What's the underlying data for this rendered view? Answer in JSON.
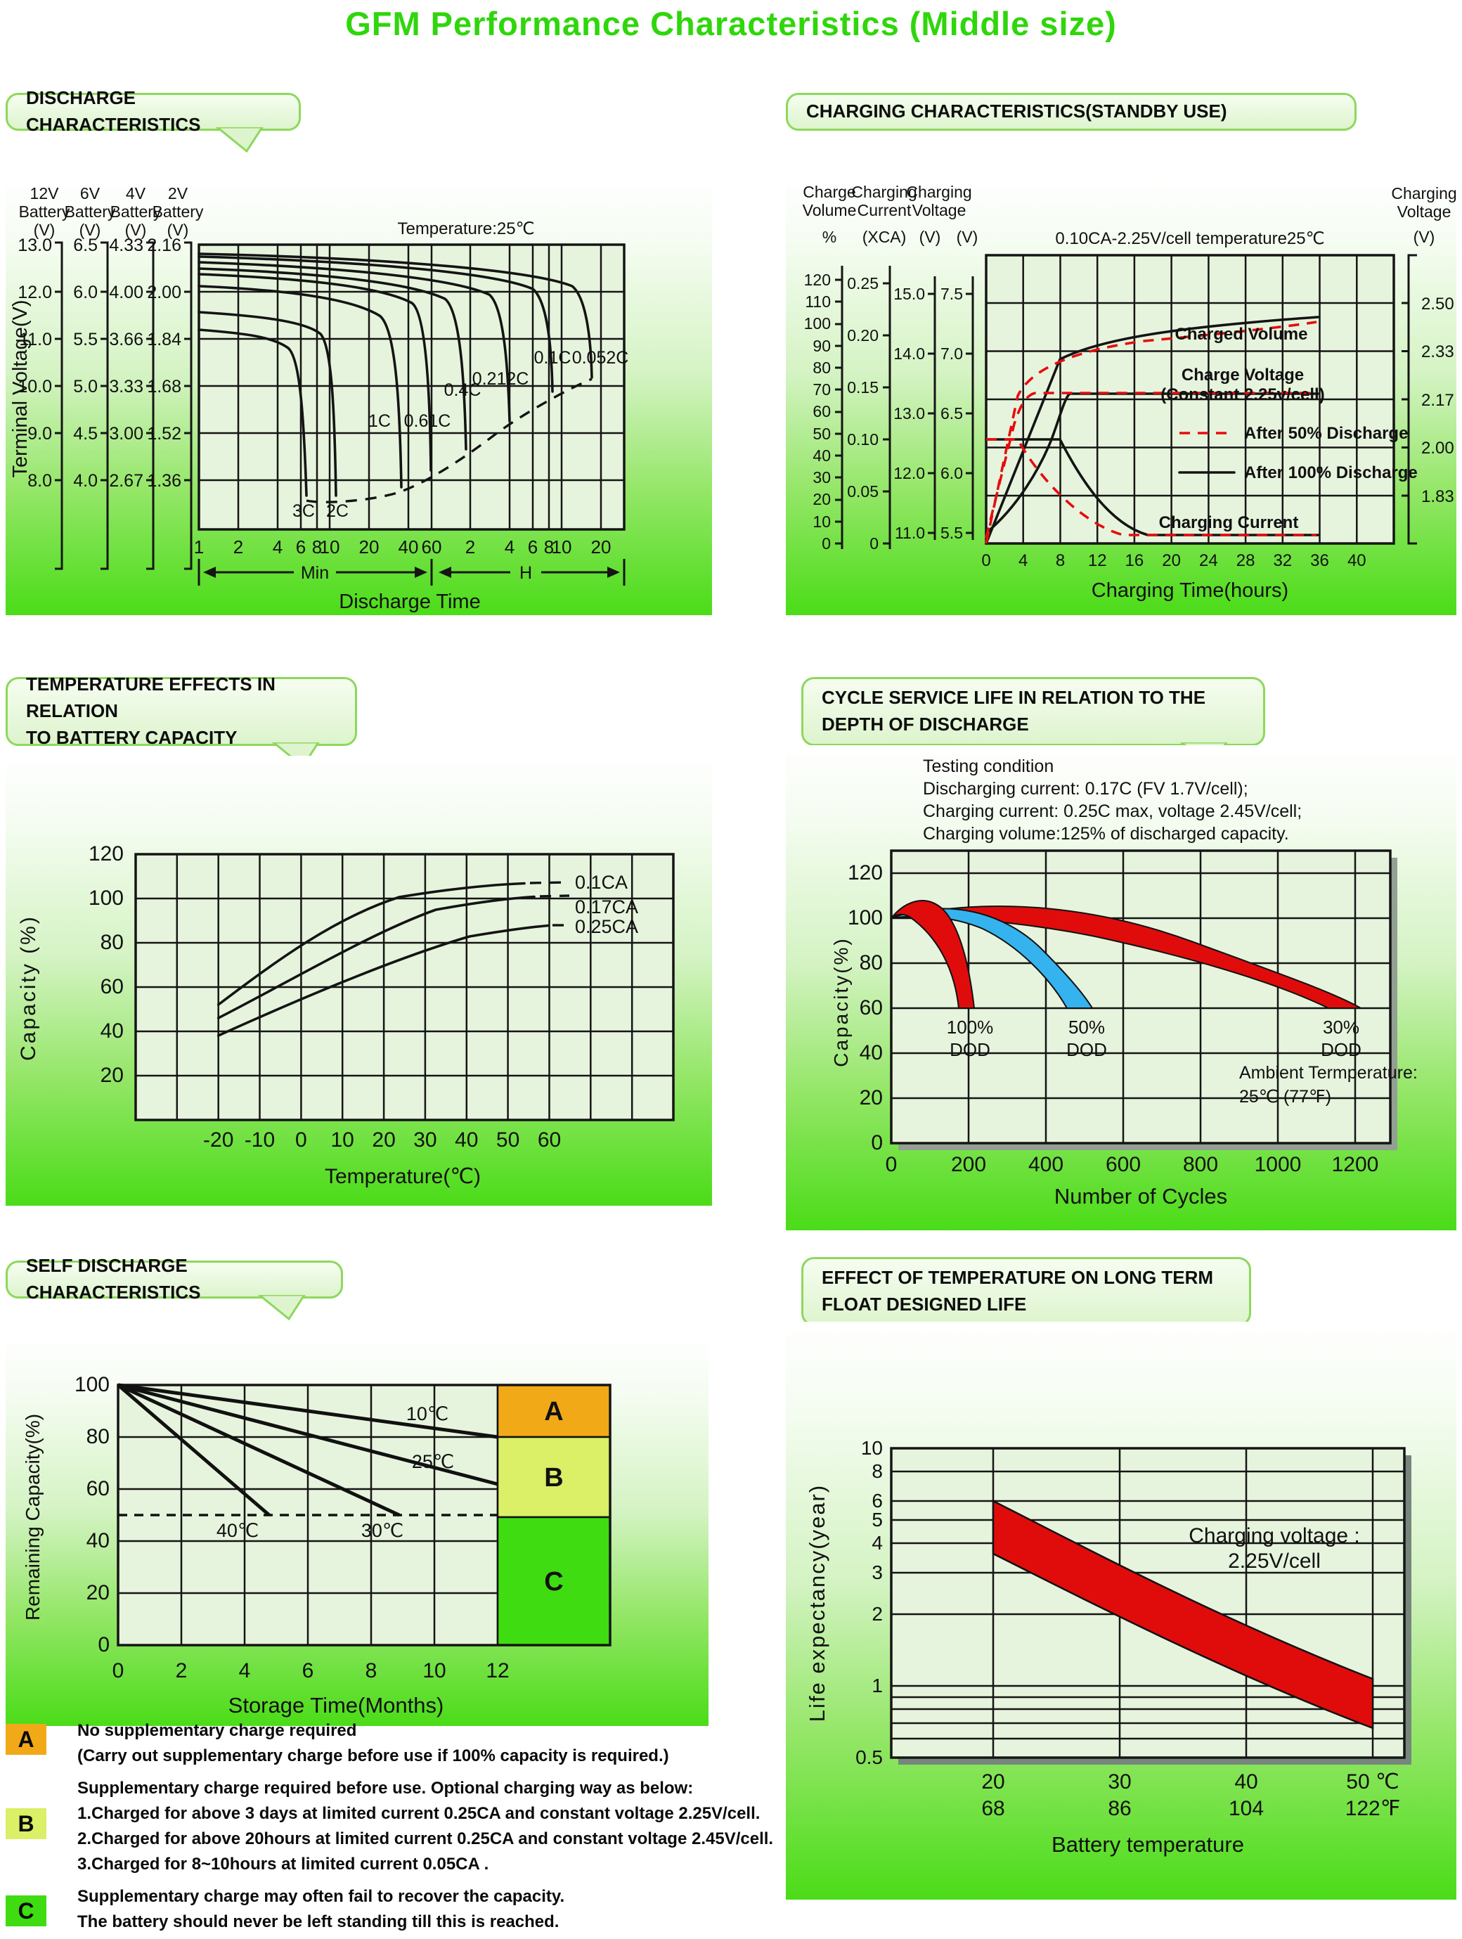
{
  "page_title": "GFM Performance Characteristics (Middle size)",
  "colors": {
    "title_green": "#2fd60b",
    "panel_green": "#4bdc18",
    "plot_bg": "#e7f4dd",
    "red_curve": "#e60d0d",
    "blue_band": "#35b3ef",
    "red_band": "#e00c0c",
    "zone_a_orange": "#f2a918",
    "zone_b_yellowgreen": "#dbef67",
    "zone_c_green": "#3fdc12"
  },
  "headers": {
    "discharge": {
      "lines": [
        "DISCHARGE CHARACTERISTICS"
      ]
    },
    "charging": {
      "lines": [
        "CHARGING CHARACTERISTICS(STANDBY USE)"
      ]
    },
    "temperature": {
      "lines": [
        "TEMPERATURE EFFECTS IN RELATION",
        "TO BATTERY CAPACITY"
      ]
    },
    "cycle": {
      "lines": [
        "CYCLE SERVICE LIFE IN RELATION TO THE",
        "DEPTH OF DISCHARGE"
      ]
    },
    "self_discharge": {
      "lines": [
        "SELF DISCHARGE CHARACTERISTICS"
      ]
    },
    "float_life": {
      "lines": [
        "EFFECT OF TEMPERATURE ON LONG TERM",
        "FLOAT DESIGNED LIFE"
      ]
    }
  },
  "chart_data": [
    {
      "type": "line",
      "title": "DISCHARGE CHARACTERISTICS",
      "annotation": "Temperature:25℃",
      "xlabel": "Discharge Time",
      "x_unit_min": "Min",
      "x_unit_h": "H",
      "ylabel": "Terminal Voltage(V)",
      "scale_headers_row1": [
        "12V",
        "6V",
        "4V",
        "2V"
      ],
      "scale_headers_row2": [
        "Battery",
        "Battery",
        "Battery",
        "Battery"
      ],
      "scale_headers_row3": [
        "(V)",
        "(V)",
        "(V)",
        "(V)"
      ],
      "scale_12v": [
        "13.0",
        "12.0",
        "11.0",
        "10.0",
        "9.0",
        "8.0"
      ],
      "scale_6v": [
        "6.5",
        "6.0",
        "5.5",
        "5.0",
        "4.5",
        "4.0"
      ],
      "scale_4v": [
        "4.33",
        "4.00",
        "3.66",
        "3.33",
        "3.00",
        "2.67"
      ],
      "scale_2v": [
        "2.16",
        "2.00",
        "1.84",
        "1.68",
        "1.52",
        "1.36"
      ],
      "xticks_min": [
        "1",
        "2",
        "4",
        "6",
        "8",
        "10",
        "20",
        "40",
        "60"
      ],
      "xticks_h": [
        "2",
        "4",
        "6",
        "8",
        "10",
        "20"
      ],
      "series": [
        {
          "name": "3C",
          "points_min_vs_v2cell": [
            [
              1,
              1.87
            ],
            [
              4,
              1.83
            ],
            [
              6,
              1.7
            ],
            [
              7,
              1.3
            ]
          ]
        },
        {
          "name": "2C",
          "points_min_vs_v2cell": [
            [
              1,
              1.93
            ],
            [
              6,
              1.88
            ],
            [
              9,
              1.74
            ],
            [
              11,
              1.3
            ]
          ]
        },
        {
          "name": "1C",
          "points_min_vs_v2cell": [
            [
              1,
              2.02
            ],
            [
              15,
              1.95
            ],
            [
              28,
              1.78
            ],
            [
              35,
              1.33
            ]
          ]
        },
        {
          "name": "0.61C",
          "points_min_vs_v2cell": [
            [
              1,
              2.06
            ],
            [
              30,
              1.97
            ],
            [
              50,
              1.78
            ],
            [
              60,
              1.42
            ]
          ]
        },
        {
          "name": "0.4C",
          "points_min_vs_v2cell": [
            [
              1,
              2.08
            ],
            [
              60,
              1.98
            ],
            [
              95,
              1.78
            ],
            [
              108,
              1.5
            ]
          ]
        },
        {
          "name": "0.212C",
          "points_min_vs_v2cell": [
            [
              1,
              2.1
            ],
            [
              120,
              1.99
            ],
            [
              210,
              1.78
            ],
            [
              240,
              1.57
            ]
          ]
        },
        {
          "name": "0.1C",
          "points_min_vs_v2cell": [
            [
              1,
              2.12
            ],
            [
              300,
              2.0
            ],
            [
              450,
              1.8
            ],
            [
              510,
              1.62
            ]
          ]
        },
        {
          "name": "0.052C",
          "points_min_vs_v2cell": [
            [
              1,
              2.13
            ],
            [
              600,
              2.0
            ],
            [
              900,
              1.8
            ],
            [
              1020,
              1.63
            ]
          ]
        }
      ]
    },
    {
      "type": "line",
      "title": "CHARGING CHARACTERISTICS(STANDBY USE)",
      "condition": "0.10CA-2.25V/cell   temperature25℃",
      "xlabel": "Charging Time(hours)",
      "left_axis_headers_row1": [
        "Charge",
        "Charging",
        "Charging"
      ],
      "left_axis_headers_row2": [
        "Volume",
        "Current",
        "Voltage"
      ],
      "left_axis_units": [
        "%",
        "(XCA)",
        "(V)",
        "(V)"
      ],
      "right_axis_header": [
        "Charging",
        "Voltage",
        "(V)"
      ],
      "scale_volume": [
        "120",
        "110",
        "100",
        "90",
        "80",
        "70",
        "60",
        "50",
        "40",
        "30",
        "20",
        "10",
        "0"
      ],
      "scale_current": [
        "0.25",
        "0.20",
        "0.15",
        "0.10",
        "0.05",
        "0"
      ],
      "scale_voltage_12v": [
        "15.0",
        "14.0",
        "13.0",
        "12.0",
        "11.0"
      ],
      "scale_voltage_6v": [
        "7.5",
        "7.0",
        "6.5",
        "6.0",
        "5.5"
      ],
      "scale_cell_voltage": [
        "2.50",
        "2.33",
        "2.17",
        "2.00",
        "1.83"
      ],
      "xticks": [
        "0",
        "4",
        "8",
        "12",
        "16",
        "20",
        "24",
        "28",
        "32",
        "36",
        "40"
      ],
      "labels": {
        "charged_volume": "Charged Volume",
        "charge_voltage1": "Charge Voltage",
        "charge_voltage2": "(Constant 2.25v/cell)",
        "after50": "After 50% Discharge",
        "after100": "After 100% Discharge",
        "charging_current": "Charging Current"
      },
      "series": [
        {
          "name": "Charged Volume after 100% discharge",
          "color": "black",
          "style": "solid",
          "points_h_pct": [
            [
              0,
              0
            ],
            [
              8,
              80
            ],
            [
              20,
              95
            ],
            [
              36,
              102
            ]
          ]
        },
        {
          "name": "Charged Volume after 50% discharge",
          "color": "red",
          "style": "dashed",
          "points_h_pct": [
            [
              0,
              0
            ],
            [
              4,
              70
            ],
            [
              16,
              95
            ],
            [
              32,
              105
            ]
          ]
        },
        {
          "name": "Charge Voltage after 100% discharge",
          "color": "black",
          "style": "solid",
          "points_h_vcell": [
            [
              0,
              1.85
            ],
            [
              4,
              2.05
            ],
            [
              8,
              2.25
            ],
            [
              36,
              2.25
            ]
          ]
        },
        {
          "name": "Charge Voltage after 50% discharge",
          "color": "red",
          "style": "dashed",
          "points_h_vcell": [
            [
              0,
              1.85
            ],
            [
              2,
              2.1
            ],
            [
              4,
              2.25
            ],
            [
              36,
              2.25
            ]
          ]
        },
        {
          "name": "Charging Current after 100% discharge",
          "color": "black",
          "style": "solid",
          "points_h_xca": [
            [
              0,
              0.1
            ],
            [
              8,
              0.1
            ],
            [
              16,
              0.02
            ],
            [
              36,
              0.01
            ]
          ]
        },
        {
          "name": "Charging Current after 50% discharge",
          "color": "red",
          "style": "dashed",
          "points_h_xca": [
            [
              0,
              0.1
            ],
            [
              3.5,
              0.1
            ],
            [
              10,
              0.02
            ],
            [
              36,
              0.01
            ]
          ]
        }
      ]
    },
    {
      "type": "line",
      "title": "TEMPERATURE EFFECTS IN RELATION TO BATTERY CAPACITY",
      "xlabel": "Temperature(℃)",
      "ylabel": "Capacity (%)",
      "yticks": [
        "120",
        "100",
        "80",
        "60",
        "40",
        "20"
      ],
      "xticks": [
        "-20",
        "-10",
        "0",
        "10",
        "20",
        "30",
        "40",
        "50",
        "60"
      ],
      "series": [
        {
          "name": "0.1CA",
          "points_c_pct": [
            [
              -20,
              52
            ],
            [
              0,
              82
            ],
            [
              20,
              98
            ],
            [
              40,
              105
            ],
            [
              50,
              107
            ]
          ]
        },
        {
          "name": "0.17CA",
          "points_c_pct": [
            [
              -20,
              46
            ],
            [
              0,
              72
            ],
            [
              20,
              90
            ],
            [
              40,
              99
            ],
            [
              50,
              101
            ]
          ]
        },
        {
          "name": "0.25CA",
          "points_c_pct": [
            [
              -20,
              38
            ],
            [
              0,
              62
            ],
            [
              20,
              78
            ],
            [
              40,
              86
            ],
            [
              50,
              88
            ]
          ]
        }
      ]
    },
    {
      "type": "area",
      "title": "CYCLE SERVICE LIFE IN RELATION TO THE DEPTH OF DISCHARGE",
      "testing_condition": [
        "Testing condition",
        "Discharging current: 0.17C (FV 1.7V/cell);",
        "Charging current: 0.25C max, voltage 2.45V/cell;",
        "Charging volume:125% of discharged capacity."
      ],
      "xlabel": "Number of Cycles",
      "ylabel": "Capacity(%)",
      "yticks": [
        "120",
        "100",
        "80",
        "60",
        "40",
        "20",
        "0"
      ],
      "xticks": [
        "0",
        "200",
        "400",
        "600",
        "800",
        "1000",
        "1200"
      ],
      "ambient_note": [
        "Ambient Termperature:",
        "25℃ (77℉)"
      ],
      "bands": [
        {
          "name": "100% DOD",
          "label1": "100%",
          "label2": "DOD",
          "color": "#e00c0c",
          "cycles_to_60pct": [
            180,
            250
          ]
        },
        {
          "name": "50% DOD",
          "label1": "50%",
          "label2": "DOD",
          "color": "#35b3ef",
          "cycles_to_60pct": [
            400,
            480
          ]
        },
        {
          "name": "30% DOD",
          "label1": "30%",
          "label2": "DOD",
          "color": "#e00c0c",
          "cycles_to_60pct": [
            950,
            1160
          ]
        }
      ]
    },
    {
      "type": "line",
      "title": "SELF DISCHARGE CHARACTERISTICS",
      "xlabel": "Storage Time(Months)",
      "ylabel": "Remaining Capacity(%)",
      "yticks": [
        "100",
        "80",
        "60",
        "40",
        "20",
        "0"
      ],
      "xticks": [
        "0",
        "2",
        "4",
        "6",
        "8",
        "10",
        "12"
      ],
      "series": [
        {
          "name": "10℃",
          "start_pct": 100,
          "end_month": 12,
          "end_pct": 80
        },
        {
          "name": "25℃",
          "start_pct": 100,
          "end_month": 12,
          "end_pct": 62
        },
        {
          "name": "30℃",
          "start_pct": 100,
          "end_month": 8.9,
          "end_pct": 50
        },
        {
          "name": "40℃",
          "start_pct": 100,
          "end_month": 4.8,
          "end_pct": 50
        }
      ],
      "zones": [
        {
          "label": "A",
          "color": "#f2a918"
        },
        {
          "label": "B",
          "color": "#dbef67"
        },
        {
          "label": "C",
          "color": "#3fdc12"
        }
      ]
    },
    {
      "type": "area",
      "title": "EFFECT OF TEMPERATURE ON LONG TERM FLOAT DESIGNED LIFE",
      "xlabel": "Battery temperature",
      "ylabel": "Life expectancy(year)",
      "yticks": [
        "10",
        "8",
        "6",
        "5",
        "4",
        "3",
        "2",
        "1",
        "0.5"
      ],
      "xticks_c": [
        "20",
        "30",
        "40",
        "50 ℃"
      ],
      "xticks_f": [
        "68",
        "86",
        "104",
        "122℉"
      ],
      "annotation": [
        "Charging voltage :",
        "2.25V/cell"
      ],
      "band": {
        "color": "#e00c0c",
        "life_years_at_20c": [
          3.6,
          6.0
        ],
        "life_years_at_50c": [
          0.7,
          1.15
        ]
      }
    }
  ],
  "notes": {
    "a": {
      "label": "A",
      "color": "#f2a918",
      "lines": [
        "No supplementary charge required",
        "(Carry out supplementary charge before use if 100% capacity is required.)"
      ]
    },
    "b": {
      "label": "B",
      "color": "#dbef67",
      "lines": [
        "Supplementary charge required before use. Optional charging way as below:",
        "1.Charged for above 3 days at limited current 0.25CA and constant voltage 2.25V/cell.",
        "2.Charged for above 20hours at limited current 0.25CA and constant voltage 2.45V/cell.",
        "3.Charged for 8~10hours at limited current 0.05CA ."
      ]
    },
    "c": {
      "label": "C",
      "color": "#3fdc12",
      "lines": [
        "Supplementary charge may often fail to recover the capacity.",
        "The battery should never be left standing till this is reached."
      ]
    }
  }
}
